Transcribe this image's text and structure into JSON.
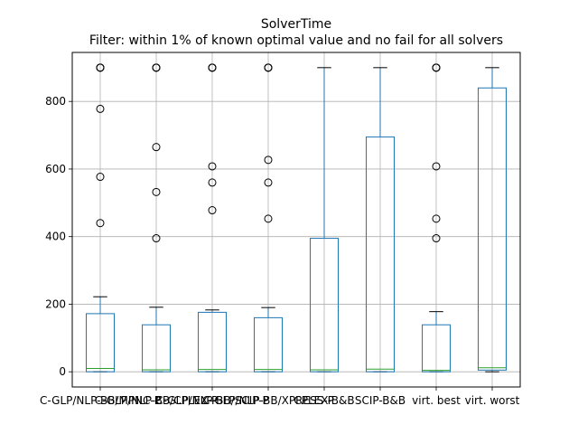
{
  "chart_data": {
    "type": "box",
    "title": "SolverTime",
    "subtitle": "Filter: within 1% of known optimal value and no fail for all solvers",
    "xlabel": "",
    "ylabel": "",
    "ylim": [
      -45,
      945
    ],
    "yticks": [
      0,
      200,
      400,
      600,
      800
    ],
    "grid": true,
    "categories": [
      "C-GLP/NLP-BB/MPNC-P",
      "C-GLP/NLP-BB/CPLEX-P",
      "C-GLP/NLP-BB/SCIP-P",
      "C-GLP/NLP-BB/XPRESS-P",
      "CPLEX-B&B",
      "SCIP-B&B",
      "virt. best",
      "virt. worst"
    ],
    "boxes": [
      {
        "whislo": 0,
        "q1": 0,
        "med": 10,
        "q3": 172,
        "whishi": 222,
        "fliers": [
          440,
          577,
          778,
          900,
          900,
          900
        ]
      },
      {
        "whislo": 0,
        "q1": 0,
        "med": 6,
        "q3": 139,
        "whishi": 191,
        "fliers": [
          395,
          532,
          665,
          900,
          900,
          900
        ]
      },
      {
        "whislo": 0,
        "q1": 0,
        "med": 7,
        "q3": 176,
        "whishi": 183,
        "fliers": [
          478,
          560,
          608,
          900,
          900,
          900
        ]
      },
      {
        "whislo": 0,
        "q1": 0,
        "med": 7,
        "q3": 160,
        "whishi": 190,
        "fliers": [
          453,
          560,
          627,
          900,
          900,
          900
        ]
      },
      {
        "whislo": 0,
        "q1": 0,
        "med": 6,
        "q3": 395,
        "whishi": 900,
        "fliers": []
      },
      {
        "whislo": 0,
        "q1": 0,
        "med": 8,
        "q3": 695,
        "whishi": 900,
        "fliers": []
      },
      {
        "whislo": 0,
        "q1": 0,
        "med": 4,
        "q3": 139,
        "whishi": 178,
        "fliers": [
          395,
          453,
          608,
          900,
          900,
          900
        ]
      },
      {
        "whislo": 0,
        "q1": 5,
        "med": 12,
        "q3": 840,
        "whishi": 900,
        "fliers": []
      }
    ],
    "colors": {
      "box": "#1f77b4",
      "median": "#2ca02c",
      "whisker": "#000000",
      "flier": "#000000",
      "grid": "#b0b0b0"
    }
  }
}
